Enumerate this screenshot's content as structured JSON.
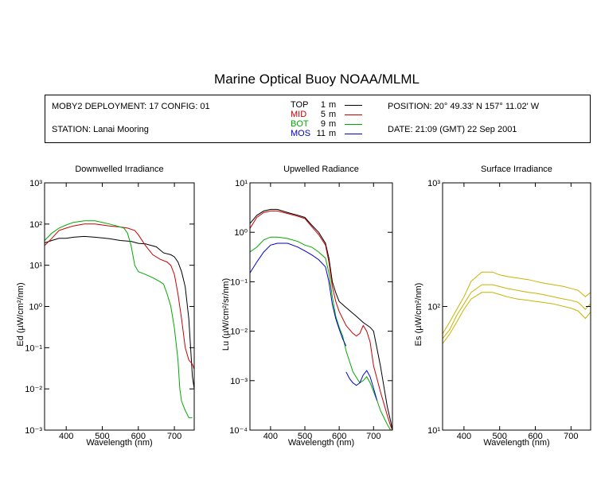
{
  "title": "Marine Optical Buoy NOAA/MLML",
  "info": {
    "deployment": "MOBY2 DEPLOYMENT: 17 CONFIG: 01",
    "station": "STATION: Lanai Mooring",
    "position": "POSITION: 20° 49.33' N   157° 11.02' W",
    "date": "DATE: 21:09 (GMT) 22 Sep 2001",
    "depths": [
      {
        "label": "TOP",
        "value": "1",
        "unit": "m",
        "color": "#000000"
      },
      {
        "label": "MID",
        "value": "5",
        "unit": "m",
        "color": "#cc0000"
      },
      {
        "label": "BOT",
        "value": "9",
        "unit": "m",
        "color": "#00aa00"
      },
      {
        "label": "MOS",
        "value": "11",
        "unit": "m",
        "color": "#0000cc"
      }
    ]
  },
  "chart_data": [
    {
      "type": "line",
      "title": "Downwelled Irradiance",
      "xlabel": "Wavelength (nm)",
      "ylabel": "Ed  (µW/cm²/nm)",
      "xlim": [
        340,
        755
      ],
      "ylim": [
        0.001,
        1000
      ],
      "yscale": "log",
      "xticks": [
        "400",
        "500",
        "600",
        "700"
      ],
      "yticks": [
        "10⁻³",
        "10⁻²",
        "10⁻¹",
        "10⁰",
        "10¹",
        "10²",
        "10³"
      ],
      "series": [
        {
          "name": "TOP",
          "color": "#000000",
          "x": [
            340,
            360,
            380,
            400,
            420,
            450,
            480,
            500,
            520,
            550,
            580,
            600,
            620,
            650,
            670,
            690,
            700,
            710,
            720,
            730,
            740,
            750,
            755
          ],
          "y": [
            35,
            40,
            45,
            45,
            48,
            50,
            48,
            46,
            44,
            40,
            38,
            34,
            33,
            28,
            20,
            18,
            16,
            12,
            7,
            3,
            0.5,
            0.02,
            0.01
          ]
        },
        {
          "name": "MID",
          "color": "#cc0000",
          "x": [
            340,
            360,
            380,
            400,
            420,
            450,
            480,
            500,
            520,
            550,
            570,
            590,
            600,
            620,
            640,
            660,
            680,
            690,
            700,
            710,
            720,
            730,
            740,
            750,
            755
          ],
          "y": [
            30,
            45,
            70,
            80,
            90,
            100,
            100,
            95,
            90,
            85,
            80,
            70,
            55,
            30,
            18,
            14,
            12,
            10,
            6,
            2,
            0.5,
            0.1,
            0.05,
            0.04,
            0.03
          ]
        },
        {
          "name": "BOT",
          "color": "#00aa00",
          "x": [
            340,
            360,
            380,
            400,
            420,
            450,
            480,
            500,
            520,
            540,
            560,
            570,
            580,
            590,
            600,
            620,
            640,
            660,
            670,
            680,
            690,
            700,
            710,
            715,
            720,
            730,
            740,
            750
          ],
          "y": [
            40,
            60,
            80,
            95,
            110,
            120,
            120,
            110,
            100,
            90,
            80,
            60,
            30,
            10,
            7,
            6,
            5,
            4,
            3.5,
            2,
            1,
            0.3,
            0.05,
            0.01,
            0.005,
            0.003,
            0.002,
            0.002
          ]
        }
      ]
    },
    {
      "type": "line",
      "title": "Upwelled Radiance",
      "xlabel": "Wavelength (nm)",
      "ylabel": "Lu  (µW/cm²/sr/nm)",
      "xlim": [
        340,
        755
      ],
      "ylim": [
        0.0001,
        10
      ],
      "yscale": "log",
      "xticks": [
        "400",
        "500",
        "600",
        "700"
      ],
      "yticks": [
        "10⁻⁴",
        "10⁻³",
        "10⁻²",
        "10⁻¹",
        "10⁰",
        "10¹"
      ],
      "series": [
        {
          "name": "TOP",
          "color": "#000000",
          "x": [
            340,
            360,
            380,
            400,
            420,
            450,
            480,
            500,
            520,
            540,
            560,
            570,
            580,
            590,
            600,
            620,
            650,
            670,
            690,
            700,
            720,
            740,
            750,
            755
          ],
          "y": [
            1.5,
            2.2,
            2.7,
            2.9,
            2.9,
            2.5,
            2.2,
            2.0,
            1.4,
            1.0,
            0.6,
            0.3,
            0.1,
            0.06,
            0.04,
            0.03,
            0.02,
            0.015,
            0.012,
            0.01,
            0.002,
            0.0003,
            0.00015,
            0.0001
          ]
        },
        {
          "name": "MID",
          "color": "#cc0000",
          "x": [
            340,
            360,
            380,
            400,
            420,
            450,
            480,
            500,
            520,
            540,
            560,
            570,
            580,
            590,
            600,
            620,
            640,
            650,
            660,
            670,
            680,
            690,
            700,
            720,
            740,
            750,
            755
          ],
          "y": [
            1.2,
            2.0,
            2.5,
            2.7,
            2.7,
            2.4,
            2.1,
            1.9,
            1.3,
            0.9,
            0.55,
            0.25,
            0.08,
            0.04,
            0.025,
            0.013,
            0.009,
            0.008,
            0.009,
            0.013,
            0.01,
            0.006,
            0.002,
            0.0006,
            0.0002,
            0.00012,
            0.0001
          ]
        },
        {
          "name": "BOT",
          "color": "#00aa00",
          "x": [
            340,
            360,
            380,
            400,
            420,
            450,
            480,
            500,
            520,
            540,
            560,
            570,
            580,
            590,
            600,
            610,
            620,
            640,
            660,
            670,
            680,
            690,
            700,
            710,
            720,
            730,
            740,
            750
          ],
          "y": [
            0.4,
            0.5,
            0.7,
            0.8,
            0.8,
            0.75,
            0.65,
            0.55,
            0.5,
            0.4,
            0.3,
            0.15,
            0.05,
            0.02,
            0.012,
            0.008,
            0.004,
            0.0015,
            0.0009,
            0.001,
            0.0012,
            0.0009,
            0.0006,
            0.0004,
            0.00025,
            0.00018,
            0.00013,
            0.0001
          ]
        },
        {
          "name": "MOS",
          "color": "#0000cc",
          "x": [
            340,
            360,
            380,
            400,
            420,
            450,
            480,
            500,
            520,
            540,
            560,
            570,
            580,
            590,
            600,
            610,
            620
          ],
          "y": [
            0.15,
            0.25,
            0.4,
            0.55,
            0.6,
            0.6,
            0.5,
            0.42,
            0.35,
            0.28,
            0.2,
            0.1,
            0.035,
            0.018,
            0.011,
            0.007,
            0.005
          ]
        },
        {
          "name": "MOS",
          "color": "#0000cc",
          "x": [
            620,
            630,
            640,
            650,
            660,
            670,
            680,
            690,
            700,
            710
          ],
          "y": [
            0.0015,
            0.0011,
            0.0009,
            0.0008,
            0.0009,
            0.0013,
            0.0016,
            0.0012,
            0.0007,
            0.0004
          ]
        }
      ]
    },
    {
      "type": "line",
      "title": "Surface Irradiance",
      "xlabel": "Wavelength (nm)",
      "ylabel": "Es  (µW/cm²/nm)",
      "xlim": [
        340,
        755
      ],
      "ylim": [
        10,
        1000
      ],
      "yscale": "log",
      "xticks": [
        "400",
        "500",
        "600",
        "700"
      ],
      "yticks": [
        "10¹",
        "10²",
        "10³"
      ],
      "series": [
        {
          "name": "",
          "color": "#c8b400",
          "x": [
            340,
            360,
            380,
            400,
            420,
            450,
            480,
            500,
            520,
            550,
            580,
            600,
            620,
            650,
            680,
            700,
            720,
            740,
            755
          ],
          "y": [
            60,
            75,
            95,
            120,
            160,
            190,
            190,
            180,
            175,
            170,
            165,
            160,
            155,
            150,
            145,
            140,
            135,
            120,
            130
          ]
        },
        {
          "name": "",
          "color": "#c8b400",
          "x": [
            340,
            360,
            380,
            400,
            420,
            450,
            480,
            500,
            520,
            550,
            580,
            600,
            620,
            650,
            680,
            700,
            720,
            740,
            755
          ],
          "y": [
            55,
            65,
            85,
            105,
            130,
            150,
            150,
            145,
            140,
            135,
            130,
            128,
            125,
            120,
            115,
            112,
            108,
            95,
            105
          ]
        },
        {
          "name": "",
          "color": "#c8b400",
          "x": [
            340,
            360,
            380,
            400,
            420,
            450,
            480,
            500,
            520,
            550,
            580,
            600,
            620,
            650,
            680,
            700,
            720,
            740,
            755
          ],
          "y": [
            50,
            60,
            75,
            95,
            115,
            130,
            130,
            125,
            120,
            115,
            112,
            110,
            108,
            105,
            100,
            97,
            92,
            80,
            90
          ]
        }
      ]
    }
  ]
}
